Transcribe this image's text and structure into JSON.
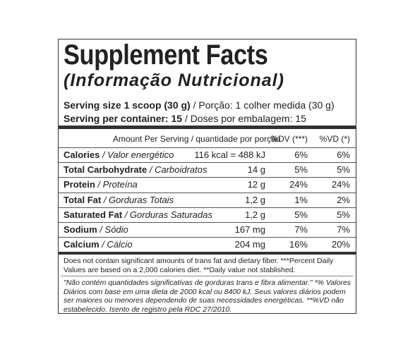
{
  "header": {
    "title": "Supplement Facts",
    "subtitle": "(Informação Nutricional)"
  },
  "serving": [
    {
      "bold": "Serving size 1 scoop (30 g)",
      "normal": "/ Porção: 1 colher medida (30 g)"
    },
    {
      "bold": "Serving per container: 15",
      "normal": "/ Doses por embalagem: 15"
    }
  ],
  "table": {
    "columns": [
      "Amount Per Serving / quantidade por porção",
      "%DV (***)",
      "%VD (*)"
    ],
    "rows": [
      {
        "name": "Calories",
        "name_pt": "/ Valor energético",
        "amount": "116 kcal = 488 kJ",
        "dv": "6%",
        "vd": "6%"
      },
      {
        "name": "Total Carbohydrate",
        "name_pt": "/ Carboidratos",
        "amount": "14 g",
        "dv": "5%",
        "vd": "5%"
      },
      {
        "name": "Protein",
        "name_pt": "/ Proteína",
        "amount": "12 g",
        "dv": "24%",
        "vd": "24%"
      },
      {
        "name": "Total Fat",
        "name_pt": "/ Gorduras Totais",
        "amount": "1,2 g",
        "dv": "1%",
        "vd": "2%"
      },
      {
        "name": "Saturated Fat",
        "name_pt": "/ Gorduras Saturadas",
        "amount": "1,2 g",
        "dv": "5%",
        "vd": "5%"
      },
      {
        "name": "Sodium",
        "name_pt": "/ Sódio",
        "amount": "167 mg",
        "dv": "7%",
        "vd": "7%"
      },
      {
        "name": "Calcium",
        "name_pt": "/ Cálcio",
        "amount": "204 mg",
        "dv": "16%",
        "vd": "20%"
      }
    ]
  },
  "footnotes": {
    "english": "Does not contain significant amounts of trans fat and dietary fiber. ***Percent Daily Values are based on a 2,000 calories diet. **Daily value not stablished.",
    "portuguese": "\"Não contém quantidades significativas de gorduras trans e fibra alimentar.\" *% Valores Diários com base em uma dieta de 2000 kcal ou 8400 kJ. Seus valores diários podem ser maiores ou menores dependendo de suas necessidades energéticas. **%VD não estabelecido. Isento de registro pela RDC 27/2010."
  }
}
